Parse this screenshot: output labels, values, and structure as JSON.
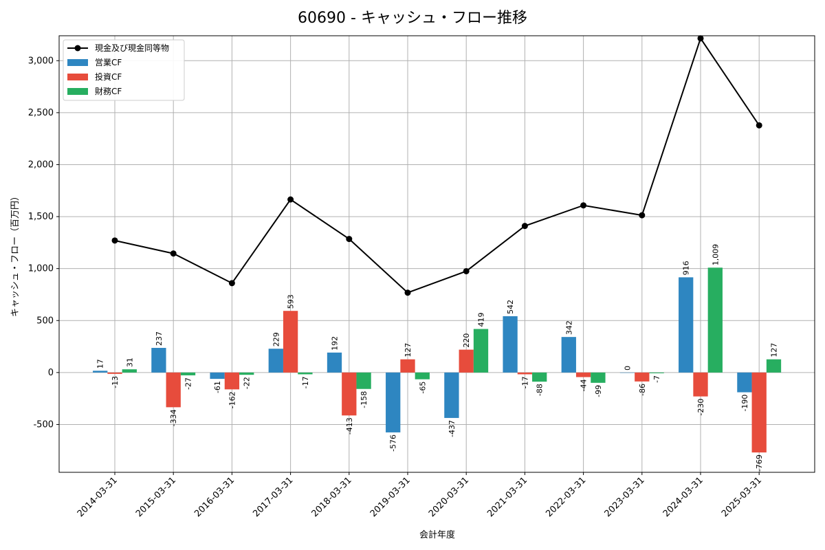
{
  "chart_data": {
    "type": "bar",
    "title": "60690 - キャッシュ・フロー推移",
    "xlabel": "会計年度",
    "ylabel": "キャッシュ・フロー（百万円）",
    "ylim": [
      -960,
      3240
    ],
    "yticks": [
      -500,
      0,
      500,
      1000,
      1500,
      2000,
      2500,
      3000
    ],
    "ytick_labels": [
      "-500",
      "0",
      "500",
      "1,000",
      "1,500",
      "2,000",
      "2,500",
      "3,000"
    ],
    "grid": true,
    "legend_position": "top-left",
    "categories": [
      "2014-03-31",
      "2015-03-31",
      "2016-03-31",
      "2017-03-31",
      "2018-03-31",
      "2019-03-31",
      "2020-03-31",
      "2021-03-31",
      "2022-03-31",
      "2023-03-31",
      "2024-03-31",
      "2025-03-31"
    ],
    "series": [
      {
        "name": "営業CF",
        "kind": "bar",
        "color": "#2e86c1",
        "values": [
          17,
          237,
          -61,
          229,
          192,
          -576,
          -437,
          542,
          342,
          0,
          916,
          -190
        ],
        "labels": [
          "17",
          "237",
          "-61",
          "229",
          "192",
          "-576",
          "-437",
          "542",
          "342",
          "0",
          "916",
          "-190"
        ]
      },
      {
        "name": "投資CF",
        "kind": "bar",
        "color": "#e74c3c",
        "values": [
          -13,
          -334,
          -162,
          593,
          -413,
          127,
          220,
          -17,
          -44,
          -86,
          -230,
          -769
        ],
        "labels": [
          "-13",
          "-334",
          "-162",
          "593",
          "-413",
          "127",
          "220",
          "-17",
          "-44",
          "-86",
          "-230",
          "-769"
        ]
      },
      {
        "name": "財務CF",
        "kind": "bar",
        "color": "#27ae60",
        "values": [
          31,
          -27,
          -22,
          -17,
          -158,
          -65,
          419,
          -88,
          -99,
          -7,
          1009,
          127
        ],
        "labels": [
          "31",
          "-27",
          "-22",
          "-17",
          "-158",
          "-65",
          "419",
          "-88",
          "-99",
          "-7",
          "1,009",
          "127"
        ]
      },
      {
        "name": "現金及び現金同等物",
        "kind": "line",
        "color": "#000000",
        "values": [
          1270,
          1145,
          860,
          1665,
          1285,
          768,
          975,
          1410,
          1608,
          1513,
          3215,
          2378
        ]
      }
    ]
  }
}
